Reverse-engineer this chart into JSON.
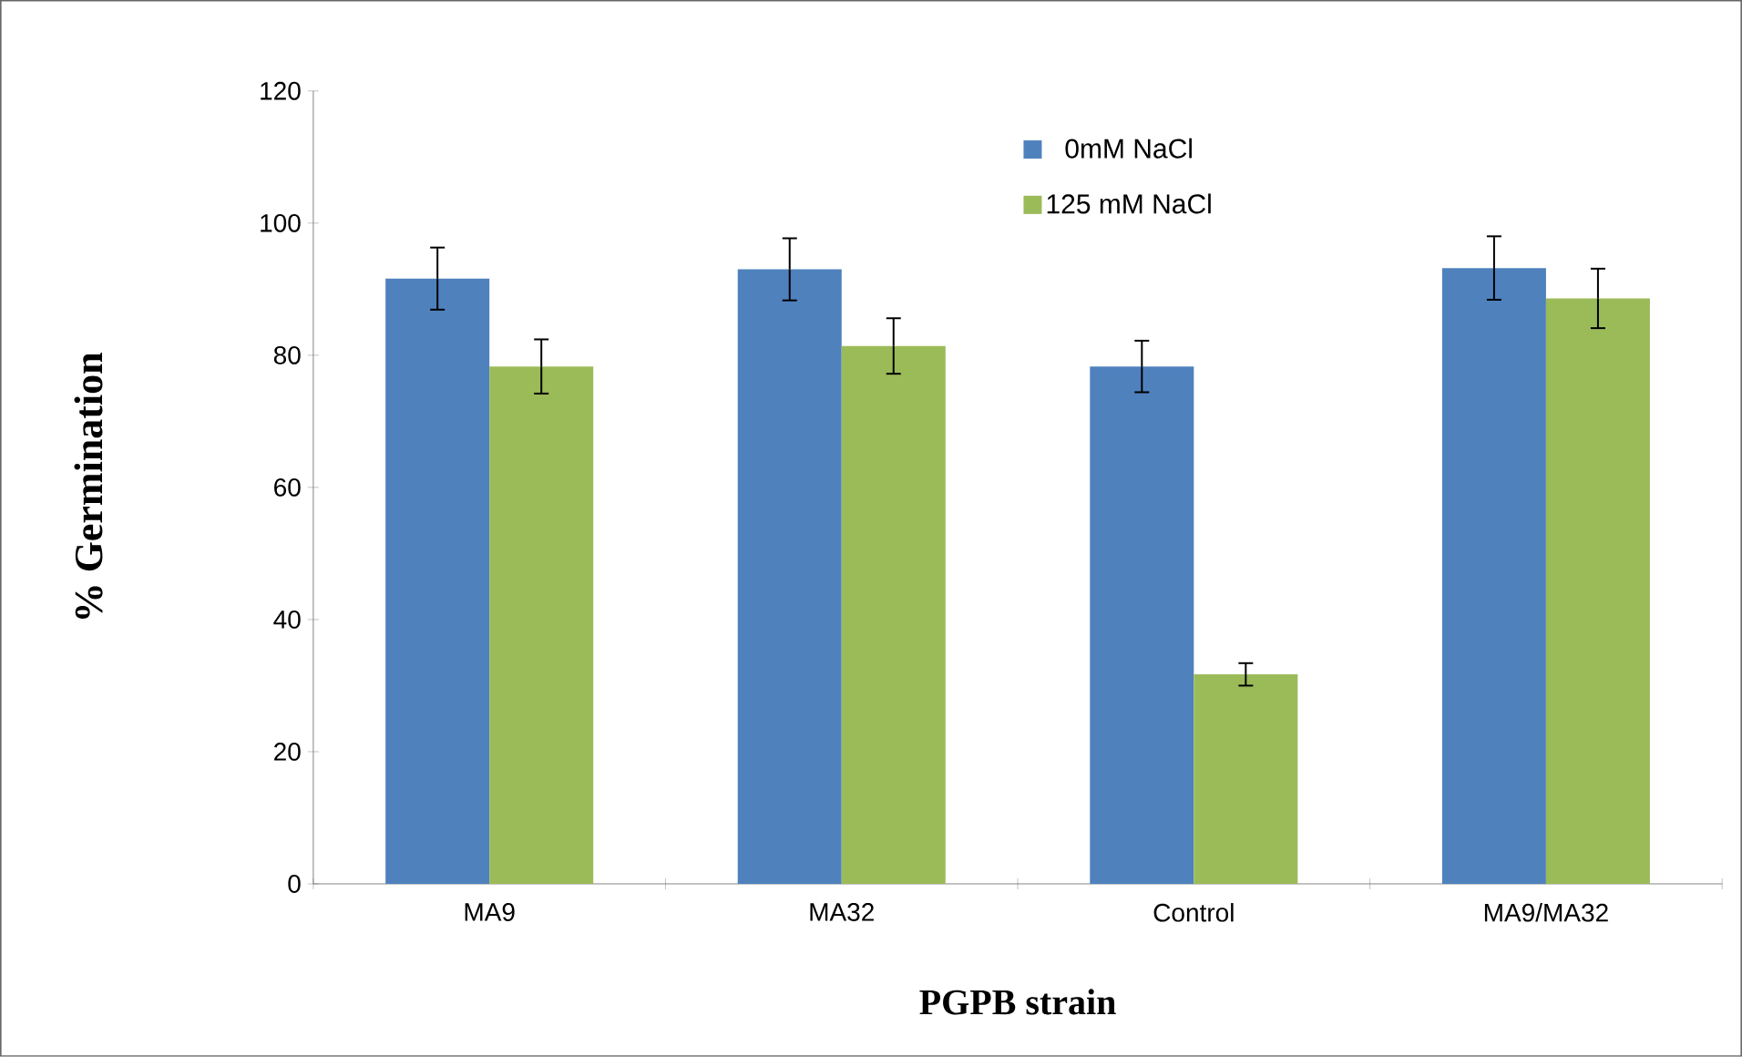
{
  "chart_data": {
    "type": "bar",
    "xlabel": "PGPB strain",
    "ylabel": "% Germination",
    "categories": [
      "MA9",
      "MA32",
      "Control",
      "MA9/MA32"
    ],
    "series": [
      {
        "name": "0mM NaCl",
        "color": "#4f81bd",
        "values": [
          91.6,
          93.0,
          78.3,
          93.2
        ],
        "errors": [
          4.7,
          4.7,
          3.9,
          4.8
        ]
      },
      {
        "name": "125 mM NaCl",
        "color": "#9bbb59",
        "values": [
          78.3,
          81.4,
          31.7,
          88.6
        ],
        "errors": [
          4.1,
          4.2,
          1.7,
          4.5
        ]
      }
    ],
    "ylim": [
      0,
      120
    ],
    "yticks": [
      0,
      20,
      40,
      60,
      80,
      100,
      120
    ],
    "legend": "top right",
    "grid": false
  }
}
